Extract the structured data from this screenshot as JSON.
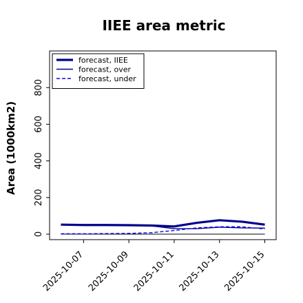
{
  "chart_data": {
    "type": "line",
    "title": "IIEE area metric",
    "xlabel": "",
    "ylabel": "Area (1000km2)",
    "x_ticks": [
      "2025-10-07",
      "2025-10-09",
      "2025-10-11",
      "2025-10-13",
      "2025-10-15"
    ],
    "x_tick_highlight": {
      "label": "2025-10-07",
      "color": "#228b22"
    },
    "x": [
      "2025-10-06",
      "2025-10-07",
      "2025-10-08",
      "2025-10-09",
      "2025-10-10",
      "2025-10-11",
      "2025-10-12",
      "2025-10-13",
      "2025-10-14",
      "2025-10-15"
    ],
    "xlim": [
      "2025-10-05.5",
      "2025-10-15.5"
    ],
    "ylim": [
      -30,
      1000
    ],
    "yticks": [
      0,
      200,
      400,
      600,
      800
    ],
    "grid": false,
    "legend_position": "top-left",
    "series": [
      {
        "name": "forecast, IIEE",
        "values": [
          52,
          50,
          50,
          49,
          47,
          42,
          62,
          76,
          68,
          52
        ],
        "color": "#00008b",
        "style": "solid-thick"
      },
      {
        "name": "forecast, over",
        "values": [
          52,
          50,
          50,
          49,
          45,
          30,
          30,
          38,
          34,
          33
        ],
        "color": "#00008b",
        "style": "solid"
      },
      {
        "name": "forecast, under",
        "values": [
          2,
          2,
          3,
          4,
          8,
          20,
          34,
          40,
          40,
          28
        ],
        "color": "#0000ff",
        "style": "dashed"
      }
    ],
    "zero_line": {
      "value": 0,
      "color": "#000000"
    }
  }
}
